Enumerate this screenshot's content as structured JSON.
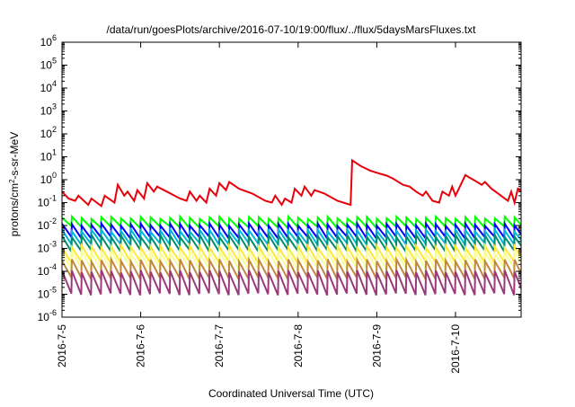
{
  "chart_data": {
    "type": "line",
    "title": "/data/run/goesPlots/archive/2016-07-10/19:00/flux/../flux/5daysMarsFluxes.txt",
    "xlabel": "Coordinated Universal Time (UTC)",
    "ylabel_parts": {
      "pre": "protons/cm",
      "sup": "2",
      "post": "-s-sr-MeV"
    },
    "log_y": true,
    "grid": false,
    "legend": "none",
    "xlim": [
      "2016-07-05",
      "2016-07-10T20:00"
    ],
    "ylim": [
      1e-06,
      1000000.0
    ],
    "x_ticks": [
      "2016-7-5",
      "2016-7-6",
      "2016-7-7",
      "2016-7-8",
      "2016-7-9",
      "2016-7-10"
    ],
    "y_ticks": [
      {
        "exp": -6,
        "label_base": "10",
        "label_exp": "-6"
      },
      {
        "exp": -5,
        "label_base": "10",
        "label_exp": "-5"
      },
      {
        "exp": -4,
        "label_base": "10",
        "label_exp": "-4"
      },
      {
        "exp": -3,
        "label_base": "10",
        "label_exp": "-3"
      },
      {
        "exp": -2,
        "label_base": "10",
        "label_exp": "-2"
      },
      {
        "exp": -1,
        "label_base": "10",
        "label_exp": "-1"
      },
      {
        "exp": 0,
        "label_base": "10",
        "label_exp": "0"
      },
      {
        "exp": 1,
        "label_base": "10",
        "label_exp": "1"
      },
      {
        "exp": 2,
        "label_base": "10",
        "label_exp": "2"
      },
      {
        "exp": 3,
        "label_base": "10",
        "label_exp": "3"
      },
      {
        "exp": 4,
        "label_base": "10",
        "label_exp": "4"
      },
      {
        "exp": 5,
        "label_base": "10",
        "label_exp": "5"
      },
      {
        "exp": 6,
        "label_base": "10",
        "label_exp": "6"
      }
    ],
    "series": [
      {
        "color": "#e8000b",
        "width": 2,
        "points": [
          [
            "2016-07-05T00:00",
            0.3
          ],
          [
            "2016-07-05T02:00",
            0.15
          ],
          [
            "2016-07-05T04:00",
            0.12
          ],
          [
            "2016-07-05T05:00",
            0.2
          ],
          [
            "2016-07-05T08:00",
            0.08
          ],
          [
            "2016-07-05T09:00",
            0.15
          ],
          [
            "2016-07-05T12:00",
            0.07
          ],
          [
            "2016-07-05T13:00",
            0.2
          ],
          [
            "2016-07-05T16:00",
            0.1
          ],
          [
            "2016-07-05T17:00",
            0.6
          ],
          [
            "2016-07-05T19:00",
            0.2
          ],
          [
            "2016-07-05T20:00",
            0.3
          ],
          [
            "2016-07-05T22:00",
            0.12
          ],
          [
            "2016-07-05T23:00",
            0.35
          ],
          [
            "2016-07-06T01:00",
            0.15
          ],
          [
            "2016-07-06T02:00",
            0.7
          ],
          [
            "2016-07-06T04:00",
            0.3
          ],
          [
            "2016-07-06T05:00",
            0.5
          ],
          [
            "2016-07-06T08:00",
            0.3
          ],
          [
            "2016-07-06T12:00",
            0.15
          ],
          [
            "2016-07-06T14:00",
            0.12
          ],
          [
            "2016-07-06T15:00",
            0.3
          ],
          [
            "2016-07-06T17:00",
            0.12
          ],
          [
            "2016-07-06T18:00",
            0.2
          ],
          [
            "2016-07-06T20:00",
            0.1
          ],
          [
            "2016-07-06T21:00",
            0.4
          ],
          [
            "2016-07-06T23:00",
            0.2
          ],
          [
            "2016-07-07T00:00",
            0.7
          ],
          [
            "2016-07-07T02:00",
            0.35
          ],
          [
            "2016-07-07T03:00",
            0.8
          ],
          [
            "2016-07-07T06:00",
            0.4
          ],
          [
            "2016-07-07T10:00",
            0.25
          ],
          [
            "2016-07-07T14:00",
            0.12
          ],
          [
            "2016-07-07T16:00",
            0.1
          ],
          [
            "2016-07-07T17:00",
            0.2
          ],
          [
            "2016-07-07T19:00",
            0.08
          ],
          [
            "2016-07-07T20:00",
            0.15
          ],
          [
            "2016-07-07T22:00",
            0.1
          ],
          [
            "2016-07-07T23:00",
            0.4
          ],
          [
            "2016-07-08T01:00",
            0.2
          ],
          [
            "2016-07-08T02:00",
            0.5
          ],
          [
            "2016-07-08T04:00",
            0.2
          ],
          [
            "2016-07-08T05:00",
            0.35
          ],
          [
            "2016-07-08T08:00",
            0.25
          ],
          [
            "2016-07-08T12:00",
            0.12
          ],
          [
            "2016-07-08T16:00",
            0.08
          ],
          [
            "2016-07-08T16:30",
            7
          ],
          [
            "2016-07-08T19:00",
            4
          ],
          [
            "2016-07-08T22:00",
            2.5
          ],
          [
            "2016-07-09T00:00",
            2
          ],
          [
            "2016-07-09T03:00",
            1.5
          ],
          [
            "2016-07-09T05:00",
            1.1
          ],
          [
            "2016-07-09T06:00",
            0.9
          ],
          [
            "2016-07-09T08:00",
            0.6
          ],
          [
            "2016-07-09T10:00",
            0.5
          ],
          [
            "2016-07-09T12:00",
            0.3
          ],
          [
            "2016-07-09T14:00",
            0.2
          ],
          [
            "2016-07-09T15:00",
            0.3
          ],
          [
            "2016-07-09T17:00",
            0.12
          ],
          [
            "2016-07-09T19:00",
            0.1
          ],
          [
            "2016-07-09T20:00",
            0.3
          ],
          [
            "2016-07-09T22:00",
            0.2
          ],
          [
            "2016-07-09T23:00",
            0.5
          ],
          [
            "2016-07-10T00:00",
            0.2
          ],
          [
            "2016-07-10T03:00",
            1.6
          ],
          [
            "2016-07-10T04:00",
            1.3
          ],
          [
            "2016-07-10T06:00",
            0.9
          ],
          [
            "2016-07-10T08:00",
            0.6
          ],
          [
            "2016-07-10T09:00",
            0.8
          ],
          [
            "2016-07-10T11:00",
            0.4
          ],
          [
            "2016-07-10T13:00",
            0.25
          ],
          [
            "2016-07-10T15:00",
            0.15
          ],
          [
            "2016-07-10T16:00",
            0.12
          ],
          [
            "2016-07-10T17:00",
            0.3
          ],
          [
            "2016-07-10T18:00",
            0.1
          ],
          [
            "2016-07-10T19:00",
            0.4
          ],
          [
            "2016-07-10T20:00",
            0.3
          ]
        ]
      }
    ],
    "sawtooth_series": [
      {
        "color": "#00ff00",
        "peak": 0.022,
        "trough": 0.0085
      },
      {
        "color": "#0000ff",
        "peak": 0.011,
        "trough": 0.003
      },
      {
        "color": "#00b7d8",
        "peak": 0.006,
        "trough": 0.0016
      },
      {
        "color": "#008b6a",
        "peak": 0.0035,
        "trough": 0.0008
      },
      {
        "color": "#ffe838",
        "peak": 0.0012,
        "trough": 0.00025
      },
      {
        "color": "#f7ff9a",
        "peak": 0.0007,
        "trough": 0.00013
      },
      {
        "color": "#c28640",
        "peak": 0.0003,
        "trough": 5e-05
      },
      {
        "color": "#9a3a7a",
        "peak": 0.0001,
        "trough": 1e-05
      }
    ],
    "sawtooth_period_hours": 3
  }
}
